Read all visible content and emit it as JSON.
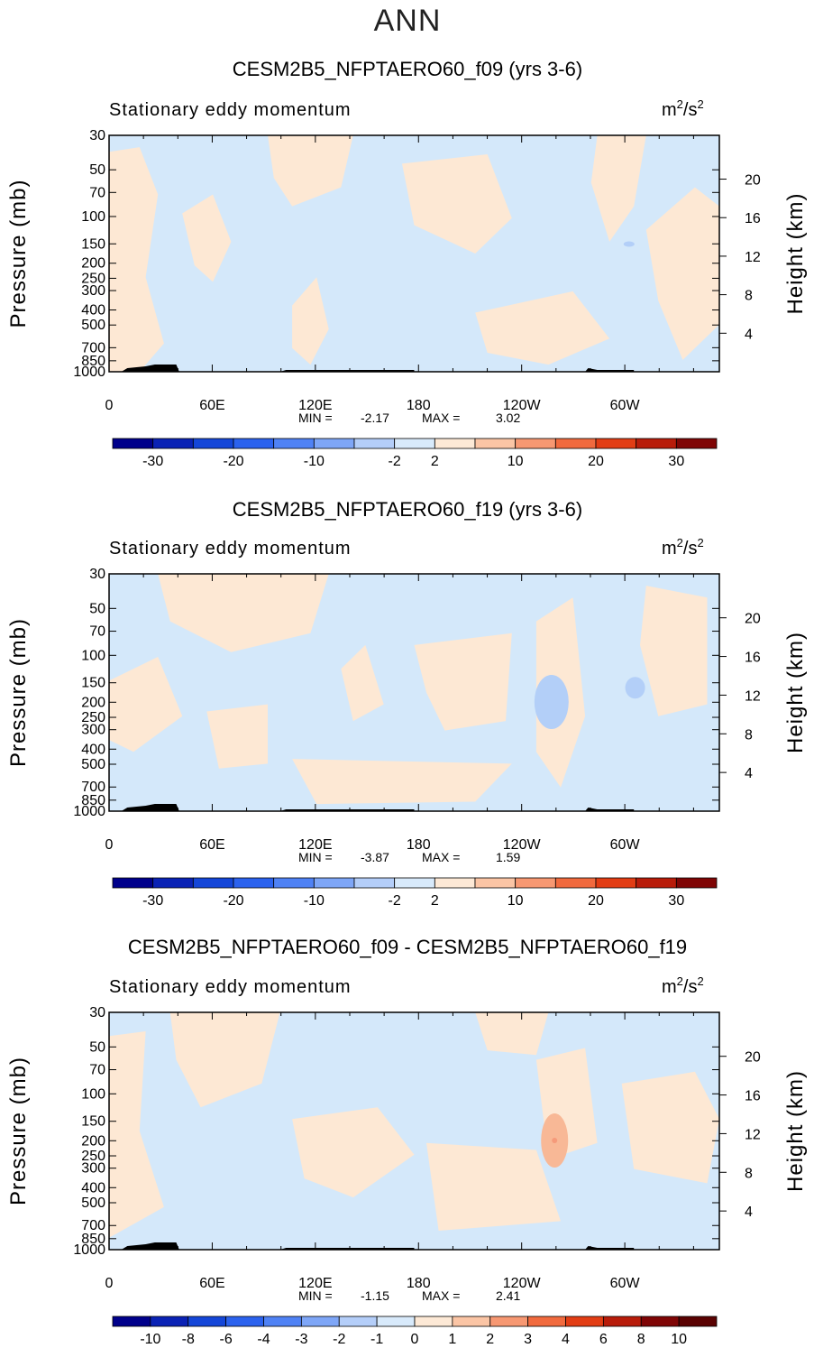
{
  "page_title": "ANN",
  "colors": {
    "negative_fill": "#d4e8fa",
    "positive_fill": "#fde8d4",
    "negative_blob": "#b3cff8",
    "positive_blob": "#f8b896",
    "positive_blob_core": "#f59a7a",
    "topography": "#000000"
  },
  "chart_data": [
    {
      "type": "heatmap",
      "id": "f09",
      "title": "CESM2B5_NFPTAERO60_f09 (yrs 3-6)",
      "subtitle": "Stationary eddy momentum",
      "units_base": "m",
      "units_exp": "2",
      "units_tail": "/s",
      "units_exp2": "2",
      "ylabel": "Pressure (mb)",
      "y2label": "Height (km)",
      "pressure_ticks": [
        "30",
        "50",
        "70",
        "100",
        "150",
        "200",
        "250",
        "300",
        "400",
        "500",
        "700",
        "850",
        "1000"
      ],
      "height_ticks": [
        "20",
        "16",
        "12",
        "8",
        "4"
      ],
      "lon_ticks": [
        "0",
        "60E",
        "120E",
        "180",
        "120W",
        "60W"
      ],
      "min_label": "MIN =",
      "min_value": "-2.17",
      "max_label": "MAX =",
      "max_value": "3.02",
      "colorbar_ticks": [
        "-30",
        "-20",
        "-10",
        "-2",
        "2",
        "10",
        "20",
        "30"
      ],
      "colorbar_colors": [
        "#00008b",
        "#0a22b5",
        "#1446d8",
        "#2b62ee",
        "#4f82f5",
        "#7ea6f7",
        "#b4cef9",
        "#d8eafb",
        "#fde9d6",
        "#fbc5a5",
        "#f79872",
        "#f16a3e",
        "#e23d14",
        "#b81c0a",
        "#7f0505"
      ]
    },
    {
      "type": "heatmap",
      "id": "f19",
      "title": "CESM2B5_NFPTAERO60_f19 (yrs 3-6)",
      "subtitle": "Stationary eddy momentum",
      "units_base": "m",
      "units_exp": "2",
      "units_tail": "/s",
      "units_exp2": "2",
      "ylabel": "Pressure (mb)",
      "y2label": "Height (km)",
      "pressure_ticks": [
        "30",
        "50",
        "70",
        "100",
        "150",
        "200",
        "250",
        "300",
        "400",
        "500",
        "700",
        "850",
        "1000"
      ],
      "height_ticks": [
        "20",
        "16",
        "12",
        "8",
        "4"
      ],
      "lon_ticks": [
        "0",
        "60E",
        "120E",
        "180",
        "120W",
        "60W"
      ],
      "min_label": "MIN =",
      "min_value": "-3.87",
      "max_label": "MAX =",
      "max_value": "1.59",
      "colorbar_ticks": [
        "-30",
        "-20",
        "-10",
        "-2",
        "2",
        "10",
        "20",
        "30"
      ],
      "colorbar_colors": [
        "#00008b",
        "#0a22b5",
        "#1446d8",
        "#2b62ee",
        "#4f82f5",
        "#7ea6f7",
        "#b4cef9",
        "#d8eafb",
        "#fde9d6",
        "#fbc5a5",
        "#f79872",
        "#f16a3e",
        "#e23d14",
        "#b81c0a",
        "#7f0505"
      ]
    },
    {
      "type": "heatmap",
      "id": "diff",
      "title": "CESM2B5_NFPTAERO60_f09 - CESM2B5_NFPTAERO60_f19",
      "subtitle": "Stationary eddy momentum",
      "units_base": "m",
      "units_exp": "2",
      "units_tail": "/s",
      "units_exp2": "2",
      "ylabel": "Pressure (mb)",
      "y2label": "Height (km)",
      "pressure_ticks": [
        "30",
        "50",
        "70",
        "100",
        "150",
        "200",
        "250",
        "300",
        "400",
        "500",
        "700",
        "850",
        "1000"
      ],
      "height_ticks": [
        "20",
        "16",
        "12",
        "8",
        "4"
      ],
      "lon_ticks": [
        "0",
        "60E",
        "120E",
        "180",
        "120W",
        "60W"
      ],
      "min_label": "MIN =",
      "min_value": "-1.15",
      "max_label": "MAX =",
      "max_value": "2.41",
      "colorbar_ticks": [
        "-10",
        "-8",
        "-6",
        "-4",
        "-3",
        "-2",
        "-1",
        "0",
        "1",
        "2",
        "3",
        "4",
        "6",
        "8",
        "10"
      ],
      "colorbar_colors": [
        "#00008b",
        "#0a22b5",
        "#1446d8",
        "#2b62ee",
        "#4f82f5",
        "#7ea6f7",
        "#b4cef9",
        "#d8eafb",
        "#fde9d6",
        "#fbc5a5",
        "#f79872",
        "#f16a3e",
        "#e23d14",
        "#b81c0a",
        "#7f0505",
        "#5a0202"
      ]
    }
  ]
}
